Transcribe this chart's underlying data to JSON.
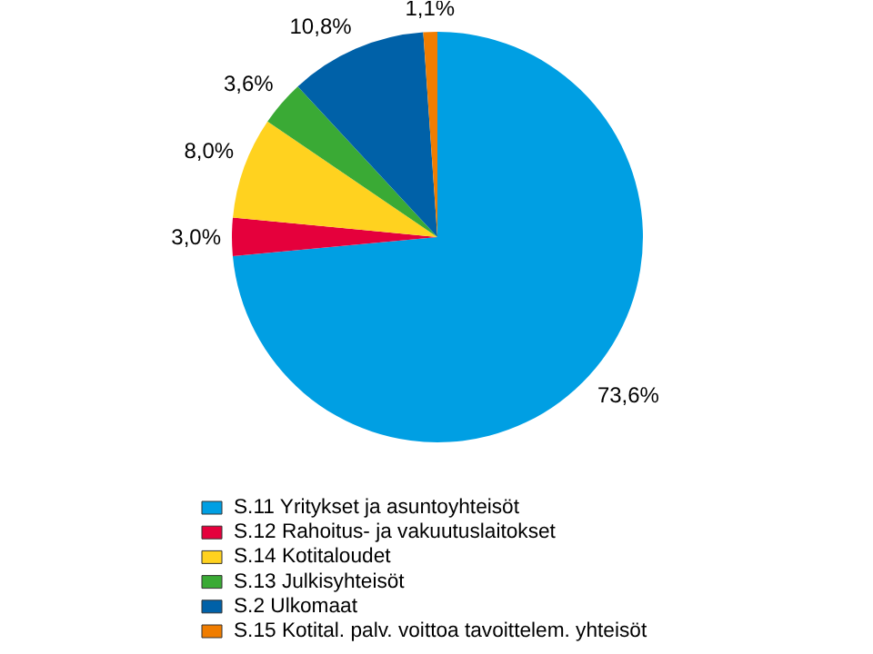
{
  "chart_data": {
    "type": "pie",
    "categories": [
      "S.11 Yritykset ja asuntoyhteisöt",
      "S.12 Rahoitus- ja vakuutuslaitokset",
      "S.14 Kotitaloudet",
      "S.13 Julkisyhteisöt",
      "S.2 Ulkomaat",
      "S.15 Kotital. palv. voittoa tavoittelem. yhteisöt"
    ],
    "values": [
      73.6,
      3.0,
      8.0,
      3.6,
      10.8,
      1.1
    ],
    "value_labels": [
      "73,6%",
      "3,0%",
      "8,0%",
      "3,6%",
      "10,8%",
      "1,1%"
    ],
    "colors": [
      "#009fe3",
      "#e5003c",
      "#ffd21f",
      "#3aaa35",
      "#0061a8",
      "#f07d00"
    ],
    "legend": "bottom"
  }
}
